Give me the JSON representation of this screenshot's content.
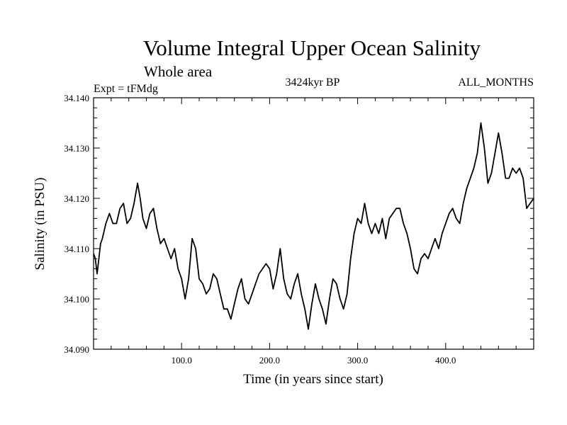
{
  "chart_data": {
    "type": "line",
    "title": "Volume Integral Upper Ocean Salinity",
    "subtitle": "Whole area",
    "experiment": "Expt = tFMdg",
    "period": "3424kyr BP",
    "months": "ALL_MONTHS",
    "xlabel": "Time (in years since start)",
    "ylabel": "Salinity (in PSU)",
    "xlim": [
      0,
      500
    ],
    "ylim": [
      34.09,
      34.14
    ],
    "x_ticks": [
      {
        "value": 100,
        "label": "100.0"
      },
      {
        "value": 200,
        "label": "200.0"
      },
      {
        "value": 300,
        "label": "300.0"
      },
      {
        "value": 400,
        "label": "400.0"
      }
    ],
    "y_ticks": [
      {
        "value": 34.09,
        "label": "34.090"
      },
      {
        "value": 34.1,
        "label": "34.100"
      },
      {
        "value": 34.11,
        "label": "34.110"
      },
      {
        "value": 34.12,
        "label": "34.120"
      },
      {
        "value": 34.13,
        "label": "34.130"
      },
      {
        "value": 34.14,
        "label": "34.140"
      }
    ],
    "grid": false,
    "series": [
      {
        "name": "salinity",
        "x": [
          0,
          2,
          4,
          6,
          8,
          10,
          14,
          18,
          22,
          26,
          30,
          34,
          38,
          42,
          46,
          50,
          53,
          56,
          60,
          64,
          68,
          72,
          76,
          80,
          84,
          88,
          92,
          96,
          100,
          104,
          108,
          112,
          116,
          120,
          124,
          128,
          132,
          136,
          140,
          144,
          148,
          152,
          156,
          160,
          164,
          168,
          172,
          176,
          180,
          184,
          188,
          192,
          196,
          200,
          204,
          208,
          212,
          216,
          220,
          224,
          228,
          232,
          236,
          240,
          244,
          248,
          252,
          256,
          260,
          264,
          268,
          272,
          276,
          280,
          284,
          288,
          292,
          296,
          300,
          304,
          308,
          312,
          316,
          320,
          324,
          328,
          332,
          336,
          340,
          344,
          348,
          352,
          356,
          360,
          364,
          368,
          372,
          376,
          380,
          384,
          388,
          392,
          396,
          400,
          404,
          408,
          412,
          416,
          420,
          424,
          428,
          432,
          436,
          440,
          444,
          448,
          452,
          456,
          460,
          464,
          468,
          472,
          476,
          480,
          484,
          488,
          492,
          496,
          500
        ],
        "y": [
          34.109,
          34.108,
          34.105,
          34.108,
          34.111,
          34.112,
          34.115,
          34.117,
          34.115,
          34.115,
          34.118,
          34.119,
          34.115,
          34.116,
          34.119,
          34.123,
          34.12,
          34.116,
          34.114,
          34.117,
          34.118,
          34.114,
          34.111,
          34.112,
          34.11,
          34.108,
          34.11,
          34.106,
          34.104,
          34.1,
          34.104,
          34.112,
          34.11,
          34.104,
          34.103,
          34.101,
          34.102,
          34.105,
          34.104,
          34.101,
          34.098,
          34.098,
          34.096,
          34.099,
          34.102,
          34.104,
          34.1,
          34.099,
          34.101,
          34.103,
          34.105,
          34.106,
          34.107,
          34.106,
          34.102,
          34.105,
          34.11,
          34.104,
          34.101,
          34.1,
          34.103,
          34.105,
          34.101,
          34.098,
          34.094,
          34.099,
          34.103,
          34.1,
          34.098,
          34.095,
          34.1,
          34.104,
          34.103,
          34.1,
          34.098,
          34.101,
          34.108,
          34.113,
          34.116,
          34.115,
          34.119,
          34.115,
          34.113,
          34.115,
          34.113,
          34.116,
          34.112,
          34.116,
          34.117,
          34.118,
          34.118,
          34.115,
          34.113,
          34.11,
          34.106,
          34.105,
          34.108,
          34.109,
          34.108,
          34.11,
          34.112,
          34.11,
          34.113,
          34.115,
          34.117,
          34.118,
          34.116,
          34.115,
          34.119,
          34.122,
          34.124,
          34.126,
          34.129,
          34.135,
          34.13,
          34.123,
          34.125,
          34.129,
          34.133,
          34.129,
          34.124,
          34.124,
          34.126,
          34.125,
          34.126,
          34.124,
          34.118,
          34.119,
          34.12
        ]
      }
    ]
  }
}
